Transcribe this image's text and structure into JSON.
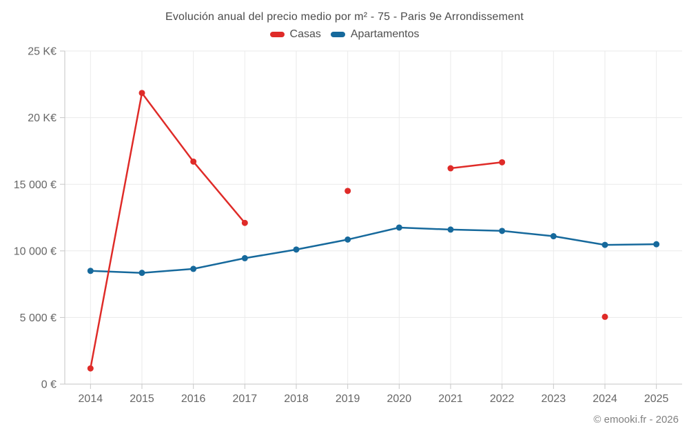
{
  "page": {
    "title": "Evolución anual del precio medio por m² - 75 - Paris 9e Arrondissement",
    "footer_credit": "© emooki.fr - 2026"
  },
  "legend": [
    {
      "label": "Casas",
      "color": "#df2b28"
    },
    {
      "label": "Apartamentos",
      "color": "#16699c"
    }
  ],
  "chart_data": {
    "type": "line",
    "title": "Evolución anual del precio medio por m² - 75 - Paris 9e Arrondissement",
    "categories": [
      "2014",
      "2015",
      "2016",
      "2017",
      "2018",
      "2019",
      "2020",
      "2021",
      "2022",
      "2023",
      "2024",
      "2025"
    ],
    "series": [
      {
        "name": "Apartamentos",
        "color": "#16699c",
        "values": [
          8500,
          8350,
          8650,
          9450,
          10100,
          10850,
          11750,
          11600,
          11500,
          11100,
          10450,
          10500
        ]
      },
      {
        "name": "Casas",
        "color": "#df2b28",
        "values": [
          1180,
          21850,
          16700,
          12100,
          null,
          14500,
          null,
          16200,
          16650,
          null,
          5050,
          null
        ]
      }
    ],
    "ylim": [
      0,
      25000
    ],
    "y_ticks": [
      {
        "value": 0,
        "label": "0 €"
      },
      {
        "value": 5000,
        "label": "5 000 €"
      },
      {
        "value": 10000,
        "label": "10 000 €"
      },
      {
        "value": 15000,
        "label": "15 000 €"
      },
      {
        "value": 20000,
        "label": "20 K€"
      },
      {
        "value": 25000,
        "label": "25 K€"
      }
    ],
    "grid": true,
    "legend_position": "top",
    "xlabel": "",
    "ylabel": ""
  },
  "colors": {
    "gridline": "#eaeaea",
    "axis": "#c6c6c6",
    "tick_label": "#666666"
  }
}
